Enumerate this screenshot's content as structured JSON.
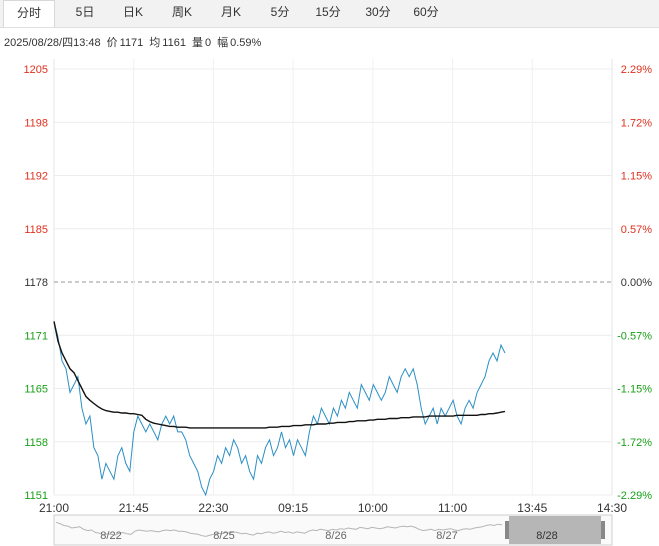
{
  "tabs": [
    {
      "label": "分时",
      "active": true
    },
    {
      "label": "5日"
    },
    {
      "label": "日K"
    },
    {
      "label": "周K"
    },
    {
      "label": "月K"
    },
    {
      "label": "5分"
    },
    {
      "label": "15分"
    },
    {
      "label": "30分"
    },
    {
      "label": "60分"
    }
  ],
  "info": {
    "datetime": "2025/08/28/四13:48",
    "price_label": "价",
    "price": "1171",
    "avg_label": "均",
    "avg": "1161",
    "vol_label": "量",
    "vol": "0",
    "range_label": "幅",
    "range": "0.59%"
  },
  "colors": {
    "up": "#e0301e",
    "down": "#18a018",
    "price_line": "#2a8fc4",
    "avg_line": "#111111",
    "baseline": "#999999"
  },
  "chart_data": {
    "type": "line",
    "title": "",
    "xlabel": "",
    "ylabel": "",
    "ylim": [
      1151,
      1205
    ],
    "y_ticks": [
      "1205",
      "1198",
      "1192",
      "1185",
      "1178",
      "1171",
      "1165",
      "1158",
      "1151"
    ],
    "pct_ticks": [
      "2.29%",
      "1.72%",
      "1.15%",
      "0.57%",
      "0.00%",
      "-0.57%",
      "-1.15%",
      "-1.72%",
      "-2.29%"
    ],
    "x_ticks": [
      "21:00",
      "21:45",
      "22:30",
      "09:15",
      "10:00",
      "11:00",
      "13:45",
      "14:30"
    ],
    "baseline": 1178,
    "grid": true,
    "series": [
      {
        "values": [
          1173,
          1171,
          1168,
          1167,
          1164,
          1165,
          1166,
          1162,
          1160,
          1161,
          1157,
          1156,
          1153,
          1155,
          1154,
          1153,
          1156,
          1157,
          1155,
          1154,
          1159,
          1161,
          1160,
          1159,
          1160,
          1159,
          1158,
          1160,
          1161,
          1160,
          1161,
          1159,
          1159,
          1158,
          1156,
          1155,
          1154,
          1152,
          1151,
          1153,
          1154,
          1156,
          1155,
          1157,
          1156,
          1158,
          1157,
          1155,
          1156,
          1154,
          1153,
          1156,
          1155,
          1157,
          1158,
          1156,
          1157,
          1159,
          1157,
          1158,
          1156,
          1158,
          1157,
          1156,
          1159,
          1161,
          1160,
          1162,
          1161,
          1160,
          1162,
          1161,
          1163,
          1162,
          1164,
          1163,
          1162,
          1165,
          1164,
          1163,
          1165,
          1164,
          1163,
          1164,
          1166,
          1165,
          1164,
          1166,
          1167,
          1166,
          1167,
          1165,
          1162,
          1160,
          1161,
          1162,
          1160,
          1162,
          1161,
          1162,
          1163,
          1161,
          1160,
          1162,
          1163,
          1162,
          1164,
          1165,
          1166,
          1168,
          1169,
          1168,
          1170,
          1169
        ]
      },
      {
        "values": [
          1173,
          1170.5,
          1169,
          1168,
          1167,
          1166.5,
          1165.5,
          1164.5,
          1163.5,
          1163,
          1162.6,
          1162.2,
          1161.9,
          1161.7,
          1161.6,
          1161.5,
          1161.5,
          1161.4,
          1161.4,
          1161.3,
          1161.3,
          1161.2,
          1161.1,
          1160.6,
          1160.3,
          1160.1,
          1160,
          1159.9,
          1159.8,
          1159.7,
          1159.7,
          1159.6,
          1159.6,
          1159.6,
          1159.5,
          1159.5,
          1159.5,
          1159.5,
          1159.5,
          1159.5,
          1159.5,
          1159.5,
          1159.5,
          1159.5,
          1159.5,
          1159.5,
          1159.5,
          1159.5,
          1159.5,
          1159.5,
          1159.5,
          1159.5,
          1159.5,
          1159.5,
          1159.6,
          1159.6,
          1159.6,
          1159.7,
          1159.7,
          1159.7,
          1159.8,
          1159.8,
          1159.8,
          1159.9,
          1159.9,
          1159.9,
          1160,
          1160,
          1160,
          1160.1,
          1160.1,
          1160.2,
          1160.2,
          1160.2,
          1160.3,
          1160.3,
          1160.4,
          1160.4,
          1160.4,
          1160.5,
          1160.5,
          1160.6,
          1160.6,
          1160.6,
          1160.7,
          1160.7,
          1160.7,
          1160.8,
          1160.8,
          1160.8,
          1160.9,
          1160.9,
          1160.9,
          1160.9,
          1161,
          1161,
          1161,
          1161,
          1161,
          1161,
          1161,
          1161.1,
          1161.1,
          1161.1,
          1161.1,
          1161.1,
          1161.1,
          1161.2,
          1161.2,
          1161.3,
          1161.3,
          1161.4,
          1161.5,
          1161.6
        ]
      }
    ]
  },
  "navigator": {
    "dates": [
      "8/22",
      "8/25",
      "8/26",
      "8/27",
      "8/28"
    ]
  }
}
